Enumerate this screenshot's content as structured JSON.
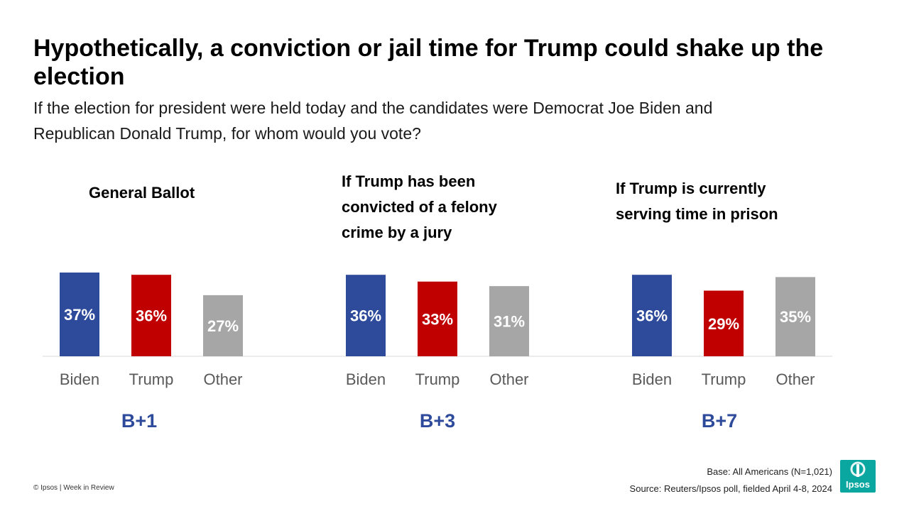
{
  "header": {
    "title": "Hypothetically, a conviction or jail time for Trump could shake up the election",
    "subtitle": "If the election for president were held today and the candidates were Democrat Joe Biden and Republican Donald Trump, for whom would you vote?"
  },
  "colors": {
    "biden": "#2e4a9b",
    "trump": "#c00000",
    "other": "#a6a6a6",
    "margin_text": "#2e4a9b",
    "logo": "#0aa6a0"
  },
  "chart_data": [
    {
      "type": "bar",
      "title": "General Ballot",
      "categories": [
        "Biden",
        "Trump",
        "Other"
      ],
      "values": [
        37,
        36,
        27
      ],
      "value_labels": [
        "37%",
        "36%",
        "27%"
      ],
      "margin": "B+1"
    },
    {
      "type": "bar",
      "title": "If Trump has been convicted of a felony crime by a jury",
      "categories": [
        "Biden",
        "Trump",
        "Other"
      ],
      "values": [
        36,
        33,
        31
      ],
      "value_labels": [
        "36%",
        "33%",
        "31%"
      ],
      "margin": "B+3"
    },
    {
      "type": "bar",
      "title": "If Trump is currently serving time in prison",
      "categories": [
        "Biden",
        "Trump",
        "Other"
      ],
      "values": [
        36,
        29,
        35
      ],
      "value_labels": [
        "36%",
        "29%",
        "35%"
      ],
      "margin": "B+7"
    }
  ],
  "footer": {
    "copyright": "© Ipsos | Week in Review",
    "base": "Base: All Americans (N=1,021)",
    "source": "Source: Reuters/Ipsos poll, fielded April 4-8, 2024",
    "logo_text": "Ipsos"
  }
}
